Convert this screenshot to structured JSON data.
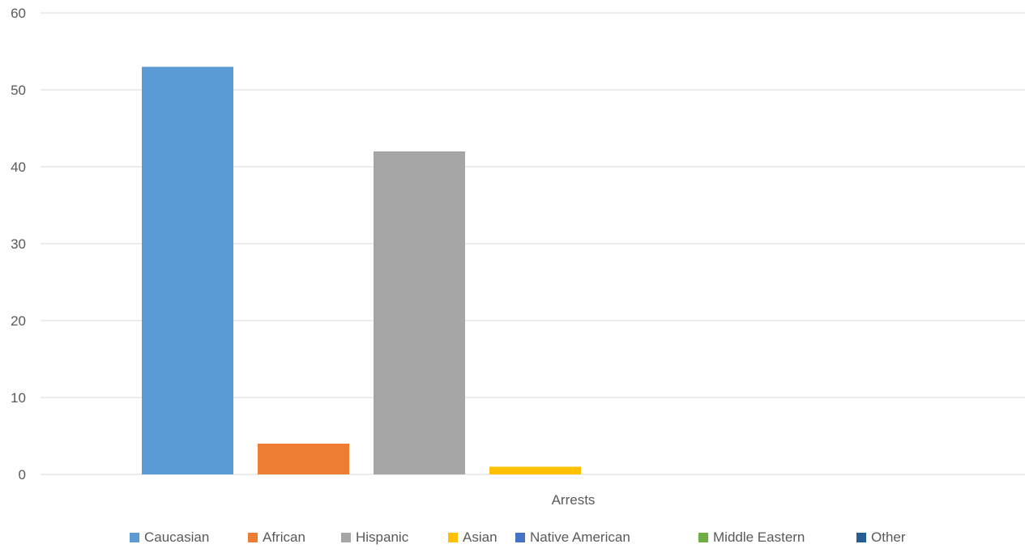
{
  "chart_data": {
    "type": "bar",
    "categories": [
      "Arrests"
    ],
    "series": [
      {
        "name": "Caucasian",
        "values": [
          53
        ],
        "color": "#5B9BD5"
      },
      {
        "name": "African",
        "values": [
          4
        ],
        "color": "#ED7D31"
      },
      {
        "name": "Hispanic",
        "values": [
          42
        ],
        "color": "#A5A5A5"
      },
      {
        "name": "Asian",
        "values": [
          1
        ],
        "color": "#FFC000"
      },
      {
        "name": "Native American",
        "values": [
          0
        ],
        "color": "#4472C4"
      },
      {
        "name": "Middle Eastern",
        "values": [
          0
        ],
        "color": "#70AD47"
      },
      {
        "name": "Other",
        "values": [
          0
        ],
        "color": "#255E91"
      }
    ],
    "ylim": [
      0,
      60
    ],
    "yticks": [
      0,
      10,
      20,
      30,
      40,
      50,
      60
    ],
    "grid": true,
    "legend_position": "bottom",
    "gridline_color": "#D9D9D9"
  }
}
